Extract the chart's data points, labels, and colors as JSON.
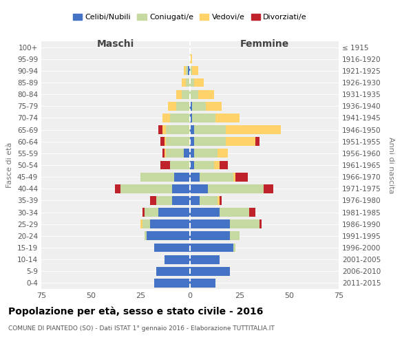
{
  "age_groups": [
    "0-4",
    "5-9",
    "10-14",
    "15-19",
    "20-24",
    "25-29",
    "30-34",
    "35-39",
    "40-44",
    "45-49",
    "50-54",
    "55-59",
    "60-64",
    "65-69",
    "70-74",
    "75-79",
    "80-84",
    "85-89",
    "90-94",
    "95-99",
    "100+"
  ],
  "birth_years": [
    "2011-2015",
    "2006-2010",
    "2001-2005",
    "1996-2000",
    "1991-1995",
    "1986-1990",
    "1981-1985",
    "1976-1980",
    "1971-1975",
    "1966-1970",
    "1961-1965",
    "1956-1960",
    "1951-1955",
    "1946-1950",
    "1941-1945",
    "1936-1940",
    "1931-1935",
    "1926-1930",
    "1921-1925",
    "1916-1920",
    "≤ 1915"
  ],
  "maschi": {
    "celibi": [
      18,
      17,
      13,
      18,
      22,
      20,
      16,
      9,
      9,
      8,
      0,
      3,
      0,
      0,
      0,
      0,
      0,
      0,
      1,
      0,
      0
    ],
    "coniugati": [
      0,
      0,
      0,
      0,
      1,
      4,
      7,
      8,
      26,
      17,
      10,
      9,
      12,
      12,
      10,
      7,
      4,
      2,
      1,
      0,
      0
    ],
    "vedovi": [
      0,
      0,
      0,
      0,
      0,
      1,
      0,
      0,
      0,
      0,
      0,
      1,
      1,
      2,
      4,
      4,
      3,
      2,
      1,
      0,
      0
    ],
    "divorziati": [
      0,
      0,
      0,
      0,
      0,
      0,
      1,
      3,
      3,
      0,
      5,
      1,
      2,
      2,
      0,
      0,
      0,
      0,
      0,
      0,
      0
    ]
  },
  "femmine": {
    "nubili": [
      13,
      20,
      15,
      22,
      20,
      20,
      15,
      5,
      9,
      5,
      2,
      2,
      2,
      2,
      1,
      1,
      0,
      0,
      0,
      0,
      0
    ],
    "coniugate": [
      0,
      0,
      0,
      1,
      5,
      15,
      15,
      9,
      28,
      17,
      10,
      12,
      16,
      16,
      12,
      7,
      4,
      2,
      1,
      0,
      0
    ],
    "vedove": [
      0,
      0,
      0,
      0,
      0,
      0,
      0,
      1,
      0,
      1,
      3,
      5,
      15,
      28,
      12,
      8,
      8,
      5,
      3,
      1,
      0
    ],
    "divorziate": [
      0,
      0,
      0,
      0,
      0,
      1,
      3,
      1,
      5,
      6,
      4,
      0,
      2,
      0,
      0,
      0,
      0,
      0,
      0,
      0,
      0
    ]
  },
  "colors": {
    "celibi": "#4472c4",
    "coniugati": "#c5d9a0",
    "vedovi": "#ffd36a",
    "divorziati": "#c0222c"
  },
  "xlim": 75,
  "title": "Popolazione per età, sesso e stato civile - 2016",
  "subtitle": "COMUNE DI PIANTEDO (SO) - Dati ISTAT 1° gennaio 2016 - Elaborazione TUTTITALIA.IT",
  "ylabel_left": "Fasce di età",
  "ylabel_right": "Anni di nascita",
  "xlabel_left": "Maschi",
  "xlabel_right": "Femmine",
  "legend_labels": [
    "Celibi/Nubili",
    "Coniugati/e",
    "Vedovi/e",
    "Divorziati/e"
  ],
  "background_color": "#efefef"
}
